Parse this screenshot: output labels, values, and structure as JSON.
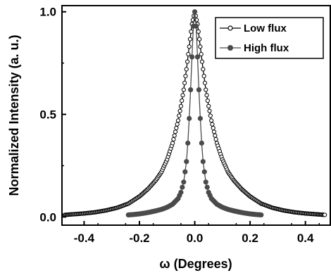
{
  "chart_data": {
    "type": "scatter",
    "title": "",
    "xlabel": "ω (Degrees)",
    "ylabel": "Normalized Intensity (a. u.)",
    "xlim": [
      -0.48,
      0.49
    ],
    "ylim": [
      -0.04,
      1.03
    ],
    "x_ticks": [
      -0.4,
      -0.2,
      0.0,
      0.2,
      0.4
    ],
    "x_tick_labels": [
      "-0.4",
      "-0.2",
      "0.0",
      "0.2",
      "0.4"
    ],
    "y_ticks": [
      0.0,
      0.5,
      1.0
    ],
    "y_tick_labels": [
      "0.0",
      "0.5",
      "1.0"
    ],
    "grid": false,
    "legend_position": "top-right",
    "series": [
      {
        "name": "Low flux",
        "marker": "open-circle",
        "color": "#000000",
        "x": [
          -0.47,
          -0.44,
          -0.4,
          -0.36,
          -0.32,
          -0.28,
          -0.24,
          -0.2,
          -0.17,
          -0.14,
          -0.12,
          -0.1,
          -0.08,
          -0.06,
          -0.05,
          -0.04,
          -0.03,
          -0.02,
          -0.01,
          0.0,
          0.01,
          0.02,
          0.03,
          0.04,
          0.05,
          0.06,
          0.08,
          0.1,
          0.12,
          0.14,
          0.17,
          0.2,
          0.24,
          0.28,
          0.32,
          0.36,
          0.4,
          0.44,
          0.47
        ],
        "y": [
          0.01,
          0.013,
          0.017,
          0.023,
          0.032,
          0.045,
          0.065,
          0.1,
          0.135,
          0.18,
          0.22,
          0.28,
          0.36,
          0.47,
          0.54,
          0.62,
          0.72,
          0.83,
          0.94,
          1.0,
          0.94,
          0.83,
          0.72,
          0.62,
          0.54,
          0.47,
          0.36,
          0.28,
          0.22,
          0.18,
          0.135,
          0.1,
          0.065,
          0.045,
          0.032,
          0.023,
          0.017,
          0.013,
          0.01
        ]
      },
      {
        "name": "High flux",
        "marker": "filled-circle",
        "color": "#4a4a4a",
        "x": [
          -0.24,
          -0.22,
          -0.2,
          -0.18,
          -0.16,
          -0.14,
          -0.12,
          -0.1,
          -0.08,
          -0.06,
          -0.05,
          -0.04,
          -0.03,
          -0.025,
          -0.02,
          -0.015,
          -0.01,
          -0.005,
          0.0,
          0.005,
          0.01,
          0.015,
          0.02,
          0.025,
          0.03,
          0.04,
          0.05,
          0.06,
          0.08,
          0.1,
          0.12,
          0.14,
          0.16,
          0.18,
          0.2,
          0.22,
          0.24
        ],
        "y": [
          0.01,
          0.012,
          0.015,
          0.019,
          0.024,
          0.03,
          0.037,
          0.047,
          0.062,
          0.09,
          0.12,
          0.17,
          0.27,
          0.36,
          0.48,
          0.62,
          0.78,
          0.93,
          1.0,
          0.93,
          0.78,
          0.62,
          0.48,
          0.36,
          0.27,
          0.17,
          0.12,
          0.09,
          0.062,
          0.047,
          0.037,
          0.03,
          0.024,
          0.019,
          0.015,
          0.012,
          0.01
        ]
      }
    ]
  }
}
